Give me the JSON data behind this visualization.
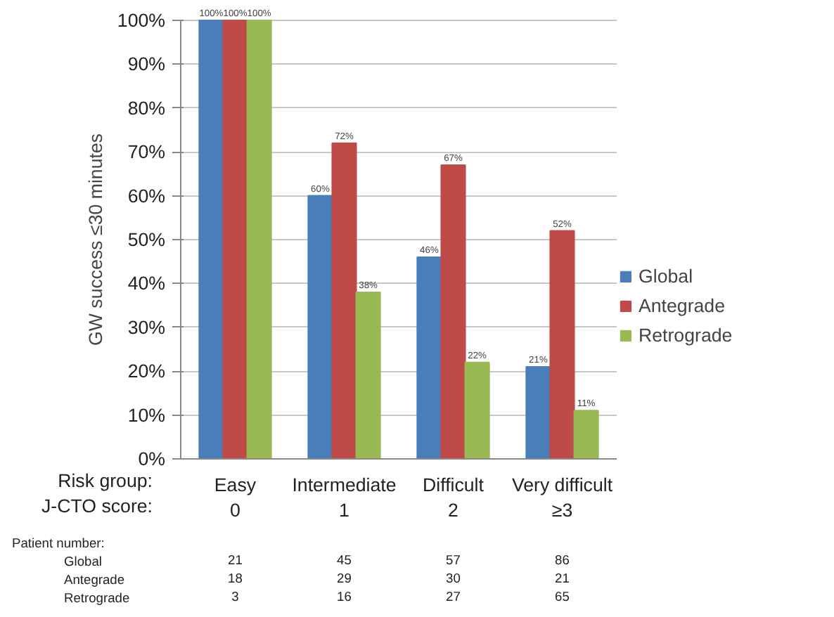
{
  "chart_data": {
    "type": "bar",
    "ylabel": "GW success ≤30 minutes",
    "categories": [
      "Easy\n0",
      "Intermediate\n1",
      "Difficult\n2",
      "Very difficult\n≥3"
    ],
    "series": [
      {
        "name": "Global",
        "color": "#4a7ebb",
        "values": [
          100,
          60,
          46,
          21
        ],
        "value_labels": [
          "100%",
          "60%",
          "46%",
          "21%"
        ]
      },
      {
        "name": "Antegrade",
        "color": "#be4b48",
        "values": [
          100,
          72,
          67,
          52
        ],
        "value_labels": [
          "100%",
          "72%",
          "67%",
          "52%"
        ]
      },
      {
        "name": "Retrograde",
        "color": "#98b954",
        "values": [
          100,
          38,
          22,
          11
        ],
        "value_labels": [
          "100%",
          "38%",
          "22%",
          "11%"
        ]
      }
    ],
    "ylim": [
      0,
      100
    ],
    "yticks": [
      {
        "value": 0,
        "label": "0%"
      },
      {
        "value": 10,
        "label": "10%"
      },
      {
        "value": 20,
        "label": "20%"
      },
      {
        "value": 30,
        "label": "30%"
      },
      {
        "value": 40,
        "label": "40%"
      },
      {
        "value": 50,
        "label": "50%"
      },
      {
        "value": 60,
        "label": "60%"
      },
      {
        "value": 70,
        "label": "70%"
      },
      {
        "value": 80,
        "label": "80%"
      },
      {
        "value": 90,
        "label": "90%"
      },
      {
        "value": 100,
        "label": "100%"
      }
    ],
    "grid": "y",
    "legend": "right",
    "annotations": [
      "Risk group:\nJ-CTO score:",
      "Patient number:",
      "Global",
      "21",
      "45",
      "57",
      "86",
      "Antegrade",
      "18",
      "29",
      "30",
      "21",
      "Retrograde",
      "3",
      "16",
      "27",
      "65"
    ]
  }
}
